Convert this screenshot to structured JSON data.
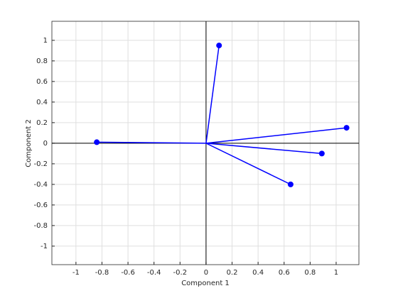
{
  "chart_data": {
    "type": "biplot",
    "x_label": "Component 1",
    "y_label": "Component 2",
    "x": [
      0.1,
      1.08,
      0.89,
      0.65,
      -0.84
    ],
    "values": [
      0.95,
      0.15,
      -0.1,
      -0.4,
      0.01
    ],
    "color": "#0000ff",
    "xlim": [
      -1.185,
      1.175
    ],
    "ylim": [
      -1.18,
      1.185
    ],
    "xticks": [
      -1,
      -0.8,
      -0.6,
      -0.4,
      -0.2,
      0,
      0.2,
      0.4,
      0.6,
      0.8,
      1
    ],
    "yticks": [
      -1,
      -0.8,
      -0.6,
      -0.4,
      -0.2,
      0,
      0.2,
      0.4,
      0.6,
      0.8,
      1
    ],
    "grid": true
  }
}
